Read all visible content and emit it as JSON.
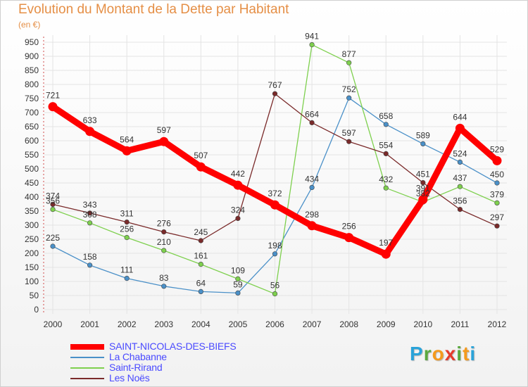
{
  "title": "Evolution du Montant de la Dette par Habitant",
  "subtitle": "(en €)",
  "logo": {
    "letters": [
      "P",
      "r",
      "o",
      "x",
      "i",
      "t",
      "i"
    ],
    "colors": [
      "#2aa3d9",
      "#5aa83e",
      "#f59a1d",
      "#e53b2c",
      "#5aa83e",
      "#f59a1d",
      "#2aa3d9"
    ]
  },
  "chart_data": {
    "type": "line",
    "x": [
      2000,
      2001,
      2002,
      2003,
      2004,
      2005,
      2006,
      2007,
      2008,
      2009,
      2010,
      2011,
      2012
    ],
    "ylim": [
      0,
      950
    ],
    "yticks": [
      0,
      50,
      100,
      150,
      200,
      250,
      300,
      350,
      400,
      450,
      500,
      550,
      600,
      650,
      700,
      750,
      800,
      850,
      900,
      950
    ],
    "grid": true,
    "legend_position": "bottom-left",
    "series": [
      {
        "name": "SAINT-NICOLAS-DES-BIEFS",
        "color": "#ff0000",
        "emphasis": true,
        "values": [
          721,
          633,
          564,
          597,
          507,
          442,
          372,
          298,
          256,
          197,
          391,
          644,
          529
        ],
        "labels": [
          "721",
          "633",
          "564",
          "597",
          "507",
          "442",
          "372",
          "298",
          "256",
          "197",
          "391",
          "644",
          "529"
        ]
      },
      {
        "name": "La Chabanne",
        "color": "#4a90c8",
        "emphasis": false,
        "values": [
          225,
          158,
          111,
          83,
          64,
          59,
          198,
          434,
          752,
          658,
          589,
          524,
          450
        ],
        "labels": [
          "225",
          "158",
          "111",
          "83",
          "64",
          "59",
          "198",
          "434",
          "752",
          "658",
          "589",
          "524",
          "450"
        ]
      },
      {
        "name": "Saint-Rirand",
        "color": "#7ed04e",
        "emphasis": false,
        "values": [
          356,
          308,
          256,
          210,
          161,
          109,
          56,
          941,
          877,
          432,
          382,
          437,
          379
        ],
        "labels": [
          "356",
          "308",
          "256",
          "210",
          "161",
          "109",
          "56",
          "941",
          "877",
          "432",
          "382",
          "437",
          "379"
        ]
      },
      {
        "name": "Les Noës",
        "color": "#7a2a2a",
        "emphasis": false,
        "values": [
          374,
          343,
          311,
          276,
          245,
          324,
          767,
          664,
          597,
          554,
          451,
          356,
          297
        ],
        "labels": [
          "374",
          "343",
          "311",
          "276",
          "245",
          "324",
          "767",
          "664",
          "597",
          "554",
          "451",
          "356",
          "297"
        ]
      }
    ]
  }
}
